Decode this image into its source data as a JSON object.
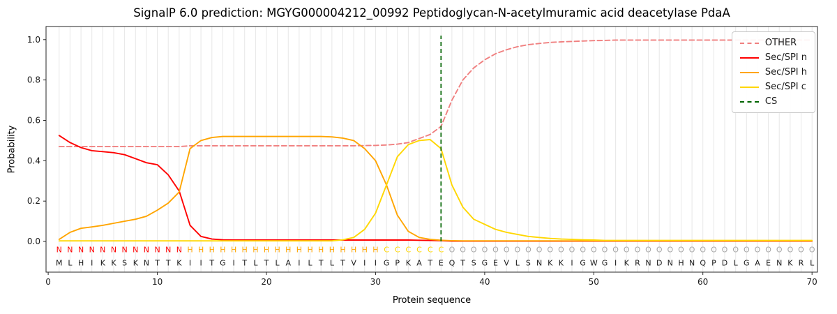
{
  "chart_data": {
    "type": "line",
    "title": "SignalP 6.0 prediction: MGYG000004212_00992 Peptidoglycan-N-acetylmuramic acid deacetylase PdaA",
    "xlabel": "Protein sequence",
    "ylabel": "Probability",
    "xlim": [
      -0.2,
      70.5
    ],
    "ylim": [
      -0.152,
      1.065
    ],
    "xticks": [
      0,
      10,
      20,
      30,
      40,
      50,
      60,
      70
    ],
    "yticks": [
      0.0,
      0.2,
      0.4,
      0.6,
      0.8,
      1.0
    ],
    "ytick_labels": [
      "0.0",
      "0.2",
      "0.4",
      "0.6",
      "0.8",
      "1.0"
    ],
    "grid": "vertical-per-residue",
    "grid_color": "#e7e7e7",
    "legend_position": "upper right",
    "x": [
      1,
      2,
      3,
      4,
      5,
      6,
      7,
      8,
      9,
      10,
      11,
      12,
      13,
      14,
      15,
      16,
      17,
      18,
      19,
      20,
      21,
      22,
      23,
      24,
      25,
      26,
      27,
      28,
      29,
      30,
      31,
      32,
      33,
      34,
      35,
      36,
      37,
      38,
      39,
      40,
      41,
      42,
      43,
      44,
      45,
      46,
      47,
      48,
      49,
      50,
      51,
      52,
      53,
      54,
      55,
      56,
      57,
      58,
      59,
      60,
      61,
      62,
      63,
      64,
      65,
      66,
      67,
      68,
      69,
      70
    ],
    "series": [
      {
        "id": "other",
        "name": "OTHER",
        "color": "#f08080",
        "dash": "7 4",
        "values": [
          0.47,
          0.47,
          0.47,
          0.47,
          0.47,
          0.47,
          0.47,
          0.47,
          0.47,
          0.47,
          0.47,
          0.47,
          0.474,
          0.474,
          0.474,
          0.474,
          0.474,
          0.474,
          0.474,
          0.474,
          0.474,
          0.474,
          0.474,
          0.474,
          0.474,
          0.474,
          0.474,
          0.474,
          0.475,
          0.476,
          0.478,
          0.482,
          0.49,
          0.51,
          0.53,
          0.57,
          0.7,
          0.8,
          0.86,
          0.9,
          0.93,
          0.95,
          0.965,
          0.975,
          0.981,
          0.986,
          0.989,
          0.991,
          0.993,
          0.995,
          0.996,
          0.998,
          0.998,
          0.998,
          0.998,
          0.998,
          0.998,
          0.998,
          0.998,
          0.998,
          0.998,
          0.998,
          0.998,
          0.998,
          0.998,
          0.998,
          0.998,
          0.998,
          0.998,
          0.998
        ]
      },
      {
        "id": "sec-spi-n",
        "name": "Sec/SPI n",
        "color": "#ff0000",
        "dash": null,
        "values": [
          0.525,
          0.49,
          0.465,
          0.45,
          0.445,
          0.44,
          0.43,
          0.41,
          0.39,
          0.38,
          0.33,
          0.25,
          0.08,
          0.025,
          0.012,
          0.008,
          0.007,
          0.007,
          0.007,
          0.007,
          0.007,
          0.007,
          0.007,
          0.007,
          0.007,
          0.007,
          0.007,
          0.007,
          0.007,
          0.007,
          0.007,
          0.007,
          0.007,
          0.006,
          0.005,
          0.004,
          0.002,
          0.002,
          0.002,
          0.002,
          0.002,
          0.002,
          0.002,
          0.002,
          0.002,
          0.002,
          0.002,
          0.002,
          0.002,
          0.002,
          0.002,
          0.002,
          0.002,
          0.002,
          0.002,
          0.002,
          0.002,
          0.002,
          0.002,
          0.002,
          0.002,
          0.002,
          0.002,
          0.002,
          0.002,
          0.002,
          0.002,
          0.002,
          0.002,
          0.002
        ]
      },
      {
        "id": "sec-spi-h",
        "name": "Sec/SPI h",
        "color": "#ffa500",
        "dash": null,
        "values": [
          0.01,
          0.045,
          0.065,
          0.072,
          0.08,
          0.09,
          0.1,
          0.11,
          0.125,
          0.155,
          0.19,
          0.245,
          0.46,
          0.5,
          0.515,
          0.52,
          0.52,
          0.52,
          0.52,
          0.52,
          0.52,
          0.52,
          0.52,
          0.52,
          0.52,
          0.518,
          0.512,
          0.5,
          0.46,
          0.4,
          0.28,
          0.13,
          0.05,
          0.02,
          0.01,
          0.006,
          0.004,
          0.003,
          0.003,
          0.003,
          0.003,
          0.003,
          0.003,
          0.003,
          0.003,
          0.003,
          0.003,
          0.003,
          0.003,
          0.003,
          0.003,
          0.003,
          0.003,
          0.003,
          0.003,
          0.003,
          0.003,
          0.003,
          0.003,
          0.003,
          0.003,
          0.003,
          0.003,
          0.003,
          0.003,
          0.003,
          0.003,
          0.003,
          0.003,
          0.003
        ]
      },
      {
        "id": "sec-spi-c",
        "name": "Sec/SPI c",
        "color": "#ffd700",
        "dash": null,
        "values": [
          0.003,
          0.003,
          0.003,
          0.003,
          0.003,
          0.003,
          0.003,
          0.003,
          0.003,
          0.003,
          0.003,
          0.003,
          0.003,
          0.003,
          0.003,
          0.003,
          0.003,
          0.003,
          0.003,
          0.003,
          0.003,
          0.003,
          0.003,
          0.003,
          0.003,
          0.003,
          0.008,
          0.02,
          0.06,
          0.14,
          0.28,
          0.42,
          0.48,
          0.5,
          0.505,
          0.46,
          0.28,
          0.17,
          0.11,
          0.085,
          0.06,
          0.045,
          0.035,
          0.025,
          0.02,
          0.015,
          0.012,
          0.01,
          0.008,
          0.007,
          0.005,
          0.005,
          0.005,
          0.005,
          0.005,
          0.005,
          0.005,
          0.005,
          0.005,
          0.005,
          0.005,
          0.005,
          0.005,
          0.005,
          0.005,
          0.005,
          0.005,
          0.005,
          0.005,
          0.005
        ]
      }
    ],
    "cs": {
      "name": "CS",
      "position": 36,
      "color": "#006400",
      "dash": "6 4"
    },
    "sequence": "MLHIKKSKNTTKIITGITLTLAILTLTVIIGPKATEQTSGEVLSNKKIGWGIKRNDNHNQPDLGAENKRL",
    "region_labels": "NNNNNNNNNNNNHHHHHHHHHHHHHHHHHHCCCCCCOOOOOOOOOOOOOOOOOOOOOOOOOOOOOOOOOO",
    "region_colors": {
      "N": "#ff0000",
      "H": "#ffa500",
      "C": "#ffd700",
      "O": "#a6a6a6"
    },
    "sequence_color": "#1a1a1a"
  }
}
